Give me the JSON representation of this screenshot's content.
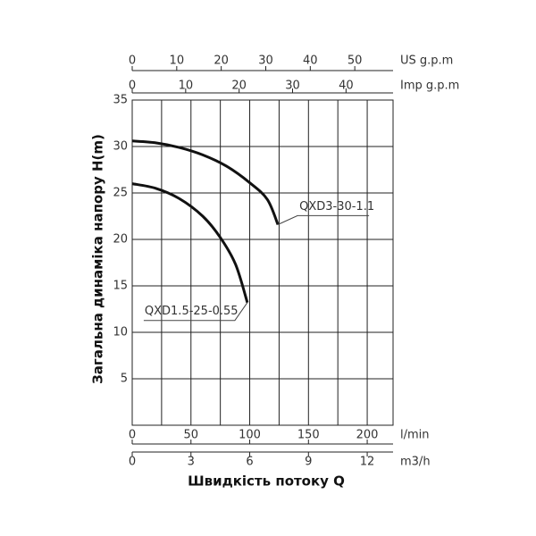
{
  "chart_data": {
    "type": "line",
    "y_label": "Загальна динаміка напору H(m)",
    "x_label": "Швидкість потоку Q",
    "x_unit": "l/min",
    "xlim": [
      0,
      222
    ],
    "xticks": [
      0,
      50,
      100,
      150,
      200
    ],
    "x_grid": [
      25,
      50,
      75,
      100,
      125,
      150,
      175,
      200
    ],
    "ylim": [
      0,
      35
    ],
    "yticks": [
      5,
      10,
      15,
      20,
      25,
      30,
      35
    ],
    "grid": true,
    "top_axes": [
      {
        "unit": "US g.p.m",
        "xlim": [
          0,
          58.6
        ],
        "xticks": [
          0,
          10,
          20,
          30,
          40,
          50
        ]
      },
      {
        "unit": "Imp g.p.m",
        "xlim": [
          0,
          48.8
        ],
        "xticks": [
          0,
          10,
          20,
          30,
          40
        ]
      }
    ],
    "bottom_axes": [
      {
        "unit": "m3/h",
        "xlim": [
          0,
          13.32
        ],
        "xticks": [
          0,
          3,
          6,
          9,
          12
        ]
      }
    ],
    "series": [
      {
        "name": "QXD3-30-1.1",
        "color": "#111111",
        "x": [
          0,
          20,
          40,
          60,
          80,
          100,
          115,
          124
        ],
        "values": [
          30.6,
          30.4,
          29.9,
          29.1,
          27.9,
          26.1,
          24.3,
          21.6
        ]
      },
      {
        "name": "QXD1.5-25-0.55",
        "color": "#111111",
        "x": [
          0,
          20,
          40,
          60,
          75,
          88,
          98
        ],
        "values": [
          26,
          25.5,
          24.4,
          22.5,
          20.2,
          17.3,
          13.2
        ]
      }
    ]
  }
}
